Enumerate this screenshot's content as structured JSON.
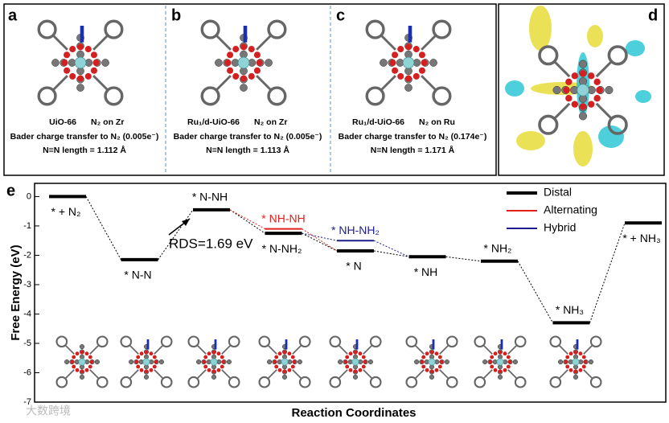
{
  "panels": [
    {
      "letter": "a",
      "name": "UiO-66",
      "site": "N₂ on Zr",
      "bader": "Bader charge transfer to N₂ (0.005e⁻)",
      "length": "N≡N length = 1.112 Å"
    },
    {
      "letter": "b",
      "name": "Ru₁/d-UiO-66",
      "site": "N₂ on Zr",
      "bader": "Bader charge transfer to N₂ (0.005e⁻)",
      "length": "N≡N length = 1.113 Å"
    },
    {
      "letter": "c",
      "name": "Ru₁/d-UiO-66",
      "site": "N₂ on Ru",
      "bader": "Bader charge transfer to N₂ (0.174e⁻)",
      "length": "N≡N length = 1.171 Å"
    },
    {
      "letter": "d"
    }
  ],
  "watermark": "大数跨境",
  "chart_data": {
    "type": "energy-levels",
    "panel": "e",
    "ylabel": "Free Energy (eV)",
    "xlabel": "Reaction Coordinates",
    "annotation": "RDS=1.69 eV",
    "ylim": [
      -7,
      0.45
    ],
    "yticks": [
      0,
      -1,
      -2,
      -3,
      -4,
      -5,
      -6,
      -7
    ],
    "legend": "top-right",
    "series": [
      {
        "name": "Distal",
        "color": "#000000",
        "values": [
          0,
          -2.15,
          -0.45,
          -1.25,
          -1.85,
          -2.05,
          -2.2,
          -4.3,
          -0.9
        ],
        "labels": [
          "* + N₂",
          "* N-N",
          "* N-NH",
          "* N-NH₂",
          "* N",
          "* NH",
          "* NH₂",
          "* NH₃",
          "* + NH₃"
        ]
      },
      {
        "name": "Alternating",
        "color": "#e0201b",
        "values": [
          null,
          null,
          null,
          -1.1,
          null,
          null,
          null,
          null,
          null
        ],
        "labels": [
          null,
          null,
          null,
          "* NH-NH",
          null,
          null,
          null,
          null,
          null
        ]
      },
      {
        "name": "Hybrid",
        "color": "#1c1c8c",
        "values": [
          null,
          null,
          null,
          null,
          -1.5,
          null,
          null,
          null,
          null
        ],
        "labels": [
          null,
          null,
          null,
          null,
          "* NH-NH₂",
          null,
          null,
          null,
          null
        ]
      }
    ]
  }
}
